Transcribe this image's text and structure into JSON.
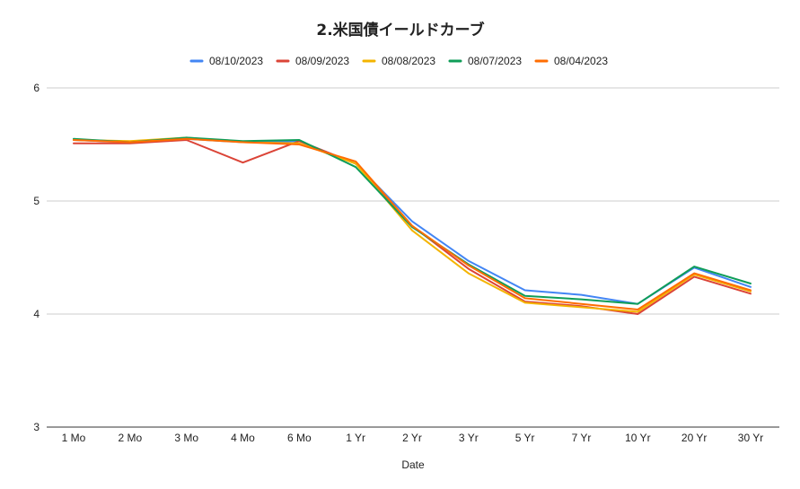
{
  "chart_data": {
    "type": "line",
    "title": "2.米国債イールドカーブ",
    "xlabel": "Date",
    "ylabel": "",
    "ylim": [
      3,
      6
    ],
    "yticks": [
      "3",
      "4",
      "5",
      "6"
    ],
    "grid": true,
    "legend_position": "top",
    "categories": [
      "1 Mo",
      "2 Mo",
      "3 Mo",
      "4 Mo",
      "6 Mo",
      "1 Yr",
      "2 Yr",
      "3 Yr",
      "5 Yr",
      "7 Yr",
      "10 Yr",
      "20 Yr",
      "30 Yr"
    ],
    "series": [
      {
        "name": "08/10/2023",
        "color": "#4285f4",
        "values": [
          5.54,
          5.52,
          5.55,
          5.52,
          5.53,
          5.33,
          4.82,
          4.47,
          4.21,
          4.17,
          4.09,
          4.41,
          4.24
        ]
      },
      {
        "name": "08/09/2023",
        "color": "#db4437",
        "values": [
          5.51,
          5.51,
          5.54,
          5.34,
          5.53,
          5.33,
          4.78,
          4.4,
          4.11,
          4.07,
          4.0,
          4.33,
          4.18
        ]
      },
      {
        "name": "08/08/2023",
        "color": "#f4b400",
        "values": [
          5.54,
          5.53,
          5.56,
          5.52,
          5.51,
          5.33,
          4.74,
          4.36,
          4.1,
          4.06,
          4.02,
          4.35,
          4.2
        ]
      },
      {
        "name": "08/07/2023",
        "color": "#0f9d58",
        "values": [
          5.55,
          5.52,
          5.56,
          5.53,
          5.54,
          5.3,
          4.77,
          4.44,
          4.16,
          4.13,
          4.09,
          4.42,
          4.27
        ]
      },
      {
        "name": "08/04/2023",
        "color": "#ff6d01",
        "values": [
          5.54,
          5.52,
          5.55,
          5.52,
          5.5,
          5.35,
          4.78,
          4.43,
          4.14,
          4.09,
          4.04,
          4.36,
          4.21
        ]
      }
    ]
  }
}
